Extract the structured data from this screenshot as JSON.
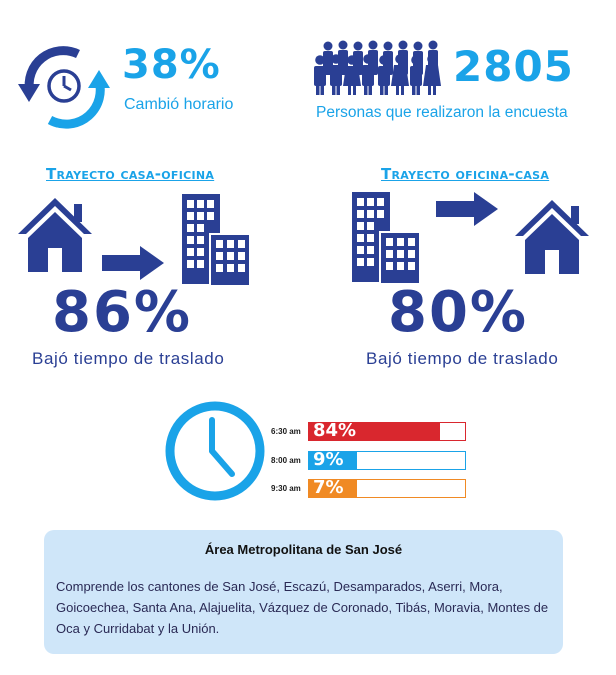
{
  "stats": {
    "schedule_change": {
      "value": "38%",
      "caption": "Cambió horario",
      "icon": "clock-cycle-icon"
    },
    "respondents": {
      "value": "2805",
      "caption": "Personas que realizaron la encuesta",
      "icon": "people-crowd-icon"
    }
  },
  "routes": [
    {
      "title": "Trayecto casa-oficina",
      "value": "86%",
      "caption": "Bajó tiempo de traslado",
      "icons": [
        "house-icon",
        "arrow-right-icon",
        "office-building-icon"
      ]
    },
    {
      "title": "Trayecto oficina-casa",
      "value": "80%",
      "caption": "Bajó tiempo de traslado",
      "icons": [
        "office-building-icon",
        "arrow-right-icon",
        "house-icon"
      ]
    }
  ],
  "schedule": {
    "icon": "clock-icon",
    "rows": [
      {
        "time": "6:30 am",
        "label": "84%",
        "value": 84,
        "color": "#d9272e"
      },
      {
        "time": "8:00 am",
        "label": "9%",
        "value": 9,
        "color": "#1aa3e8"
      },
      {
        "time": "9:30 am",
        "label": "7%",
        "value": 7,
        "color": "#f08a24"
      }
    ]
  },
  "info": {
    "title": "Área Metropolitana de San José",
    "body": "Comprende los cantones de San José, Escazú, Desamparados, Aserri, Mora, Goicoechea, Santa Ana, Alajuelita, Vázquez de Coronado, Tibás, Moravia, Montes de Oca y Curridabat y la Unión."
  },
  "colors": {
    "navy": "#2a3f94",
    "cyan": "#1aa3e8",
    "panel": "#cfe6f9"
  }
}
